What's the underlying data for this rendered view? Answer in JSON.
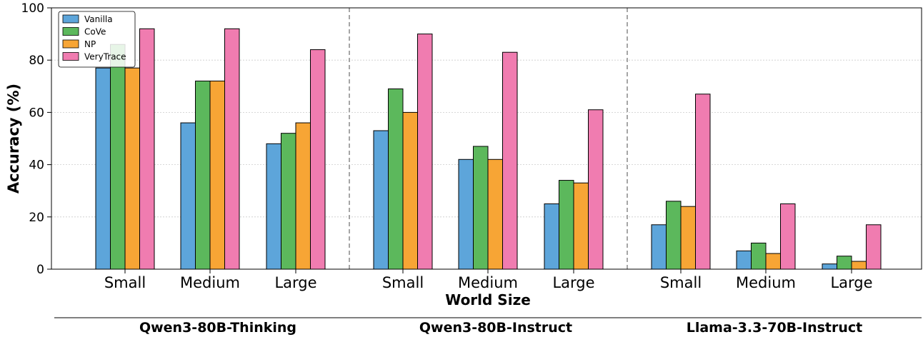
{
  "chart_data": {
    "type": "bar",
    "ylabel": "Accuracy (%)",
    "xlabel": "World Size",
    "ylim": [
      0,
      100
    ],
    "yticks": [
      0,
      20,
      40,
      60,
      80,
      100
    ],
    "grid": "horizontal dotted",
    "legend_placement": "top-left",
    "categories": [
      "Small",
      "Medium",
      "Large"
    ],
    "series": [
      {
        "name": "Vanilla",
        "color": "#5da5da"
      },
      {
        "name": "CoVe",
        "color": "#5cb85c"
      },
      {
        "name": "NP",
        "color": "#f7a535"
      },
      {
        "name": "VeryTrace",
        "color": "#f07cb0"
      }
    ],
    "groups": [
      {
        "name": "Qwen3-80B-Thinking",
        "values": {
          "Vanilla": [
            77,
            56,
            48
          ],
          "CoVe": [
            86,
            72,
            52
          ],
          "NP": [
            77,
            72,
            56
          ],
          "VeryTrace": [
            92,
            92,
            84
          ]
        }
      },
      {
        "name": "Qwen3-80B-Instruct",
        "values": {
          "Vanilla": [
            53,
            42,
            25
          ],
          "CoVe": [
            69,
            47,
            34
          ],
          "NP": [
            60,
            42,
            33
          ],
          "VeryTrace": [
            90,
            83,
            61
          ]
        }
      },
      {
        "name": "Llama-3.3-70B-Instruct",
        "values": {
          "Vanilla": [
            17,
            7,
            2
          ],
          "CoVe": [
            26,
            10,
            5
          ],
          "NP": [
            24,
            6,
            3
          ],
          "VeryTrace": [
            67,
            25,
            17
          ]
        }
      }
    ]
  }
}
